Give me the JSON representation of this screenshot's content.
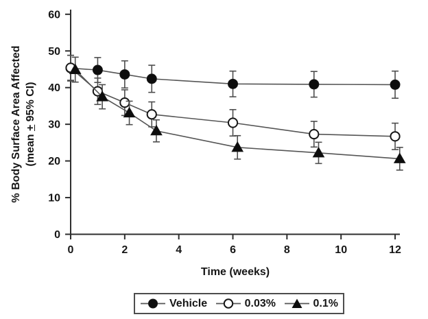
{
  "chart_data": {
    "type": "line",
    "title": "",
    "xlabel": "Time (weeks)",
    "ylabel": "% Body Surface Area Affected (mean + 95% CI)",
    "error_bars": "95% CI",
    "legend_position": "bottom-center-boxed",
    "grid": false,
    "xlim": [
      0,
      12
    ],
    "ylim": [
      0,
      60
    ],
    "x_ticks": [
      0,
      2,
      4,
      6,
      8,
      10,
      12
    ],
    "y_ticks": [
      0,
      10,
      20,
      30,
      40,
      50,
      60
    ],
    "x_weeks": [
      0,
      1,
      2,
      3,
      6,
      9,
      12
    ],
    "series": [
      {
        "name": "Vehicle",
        "marker": "filled-circle",
        "x_offset_weeks": 0,
        "values": [
          45.3,
          44.8,
          43.6,
          42.4,
          41.0,
          40.9,
          40.8
        ],
        "ci": [
          3.5,
          3.4,
          3.7,
          3.7,
          3.5,
          3.5,
          3.7
        ]
      },
      {
        "name": "0.03%",
        "marker": "open-circle",
        "x_offset_weeks": 0,
        "values": [
          45.4,
          39.0,
          35.9,
          32.7,
          30.4,
          27.3,
          26.7
        ],
        "ci": [
          3.4,
          3.6,
          3.5,
          3.4,
          3.6,
          3.5,
          3.6
        ]
      },
      {
        "name": "0.1%",
        "marker": "filled-triangle",
        "x_offset_weeks": 0.17,
        "values": [
          44.9,
          37.5,
          33.1,
          28.2,
          23.7,
          22.2,
          20.6
        ],
        "ci": [
          3.4,
          3.3,
          3.2,
          3.0,
          3.2,
          2.9,
          3.1
        ]
      }
    ],
    "colors": {
      "axis": "#2e2e2e",
      "series_line": "#555555",
      "error_bar": "#4d4d4d",
      "marker_fill": "#0d0d0d",
      "marker_stroke": "#161616",
      "text": "#161616",
      "legend_border": "#4d4d4d",
      "background": "#ffffff"
    }
  },
  "y_axis_title": {
    "line1": "% Body Surface Area Affected",
    "line2_pre": "(mean ",
    "line2_plus": "+",
    "line2_post": " 95% CI)"
  }
}
